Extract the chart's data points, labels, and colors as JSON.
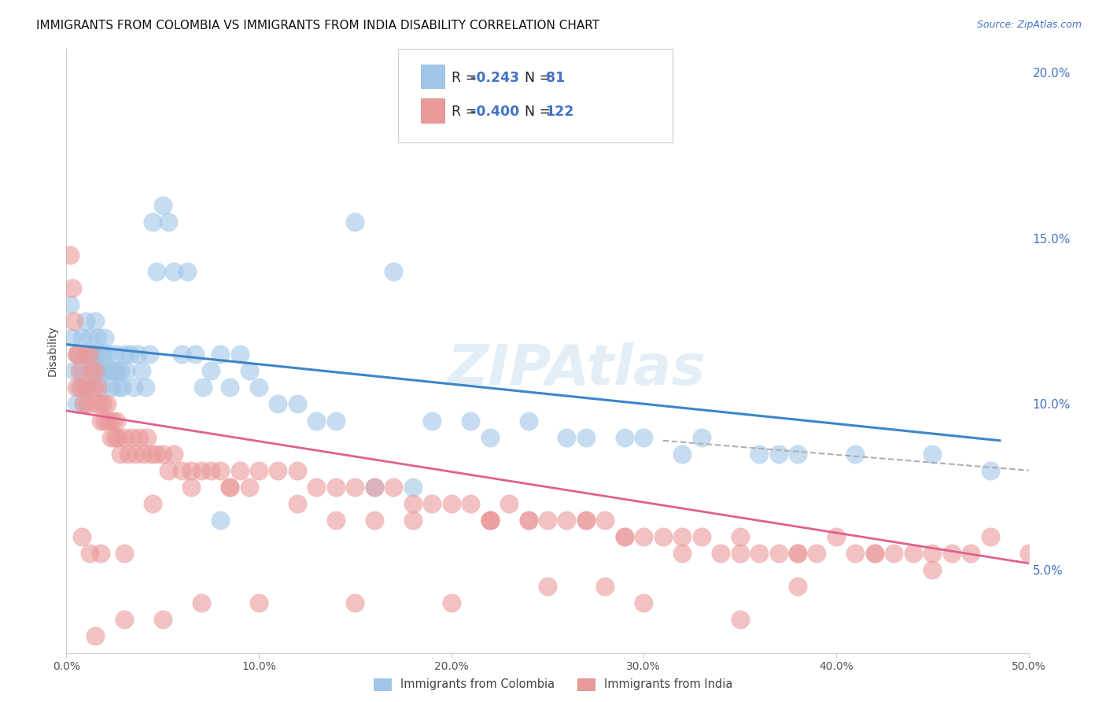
{
  "title": "IMMIGRANTS FROM COLOMBIA VS IMMIGRANTS FROM INDIA DISABILITY CORRELATION CHART",
  "source": "Source: ZipAtlas.com",
  "ylabel": "Disability",
  "xlim": [
    0.0,
    0.5
  ],
  "ylim": [
    0.025,
    0.207
  ],
  "xticks": [
    0.0,
    0.1,
    0.2,
    0.3,
    0.4,
    0.5
  ],
  "xticklabels": [
    "0.0%",
    "10.0%",
    "20.0%",
    "30.0%",
    "40.0%",
    "50.0%"
  ],
  "yticks_right": [
    0.05,
    0.1,
    0.15,
    0.2
  ],
  "yticklabels_right": [
    "5.0%",
    "10.0%",
    "15.0%",
    "20.0%"
  ],
  "grid_color": "#d8d8d8",
  "background_color": "#ffffff",
  "colombia_color": "#9fc5e8",
  "india_color": "#ea9999",
  "colombia_line_color": "#3d85c8",
  "india_line_color": "#e06090",
  "dashed_line_color": "#b0b0b0",
  "r_colombia": -0.243,
  "n_colombia": 81,
  "r_india": -0.4,
  "n_india": 122,
  "legend_label_colombia": "Immigrants from Colombia",
  "legend_label_india": "Immigrants from India",
  "watermark": "ZIPAtlas",
  "colombia_scatter_x": [
    0.002,
    0.003,
    0.004,
    0.005,
    0.006,
    0.007,
    0.008,
    0.008,
    0.009,
    0.01,
    0.01,
    0.011,
    0.012,
    0.013,
    0.014,
    0.015,
    0.015,
    0.016,
    0.017,
    0.018,
    0.018,
    0.019,
    0.02,
    0.02,
    0.021,
    0.022,
    0.023,
    0.024,
    0.025,
    0.026,
    0.027,
    0.028,
    0.029,
    0.03,
    0.031,
    0.033,
    0.035,
    0.037,
    0.039,
    0.041,
    0.043,
    0.045,
    0.047,
    0.05,
    0.053,
    0.056,
    0.06,
    0.063,
    0.067,
    0.071,
    0.075,
    0.08,
    0.085,
    0.09,
    0.095,
    0.1,
    0.11,
    0.12,
    0.13,
    0.14,
    0.15,
    0.17,
    0.19,
    0.21,
    0.24,
    0.27,
    0.3,
    0.33,
    0.37,
    0.41,
    0.45,
    0.48,
    0.22,
    0.26,
    0.32,
    0.38,
    0.29,
    0.36,
    0.16,
    0.18,
    0.08
  ],
  "colombia_scatter_y": [
    0.13,
    0.12,
    0.11,
    0.1,
    0.115,
    0.105,
    0.12,
    0.11,
    0.1,
    0.125,
    0.115,
    0.105,
    0.12,
    0.115,
    0.11,
    0.125,
    0.115,
    0.12,
    0.115,
    0.11,
    0.105,
    0.115,
    0.12,
    0.11,
    0.115,
    0.11,
    0.105,
    0.11,
    0.115,
    0.11,
    0.105,
    0.11,
    0.105,
    0.115,
    0.11,
    0.115,
    0.105,
    0.115,
    0.11,
    0.105,
    0.115,
    0.155,
    0.14,
    0.16,
    0.155,
    0.14,
    0.115,
    0.14,
    0.115,
    0.105,
    0.11,
    0.115,
    0.105,
    0.115,
    0.11,
    0.105,
    0.1,
    0.1,
    0.095,
    0.095,
    0.155,
    0.14,
    0.095,
    0.095,
    0.095,
    0.09,
    0.09,
    0.09,
    0.085,
    0.085,
    0.085,
    0.08,
    0.09,
    0.09,
    0.085,
    0.085,
    0.09,
    0.085,
    0.075,
    0.075,
    0.065
  ],
  "india_scatter_x": [
    0.002,
    0.003,
    0.004,
    0.005,
    0.005,
    0.006,
    0.007,
    0.008,
    0.009,
    0.01,
    0.01,
    0.011,
    0.012,
    0.013,
    0.014,
    0.015,
    0.015,
    0.016,
    0.017,
    0.018,
    0.019,
    0.02,
    0.021,
    0.022,
    0.023,
    0.024,
    0.025,
    0.026,
    0.027,
    0.028,
    0.03,
    0.032,
    0.034,
    0.036,
    0.038,
    0.04,
    0.042,
    0.044,
    0.047,
    0.05,
    0.053,
    0.056,
    0.06,
    0.065,
    0.07,
    0.075,
    0.08,
    0.085,
    0.09,
    0.095,
    0.1,
    0.11,
    0.12,
    0.13,
    0.14,
    0.15,
    0.16,
    0.17,
    0.18,
    0.19,
    0.2,
    0.21,
    0.22,
    0.23,
    0.24,
    0.25,
    0.26,
    0.27,
    0.28,
    0.29,
    0.3,
    0.31,
    0.32,
    0.33,
    0.34,
    0.35,
    0.36,
    0.38,
    0.4,
    0.42,
    0.44,
    0.46,
    0.48,
    0.5,
    0.37,
    0.39,
    0.41,
    0.43,
    0.45,
    0.47,
    0.27,
    0.29,
    0.22,
    0.24,
    0.32,
    0.35,
    0.14,
    0.16,
    0.085,
    0.065,
    0.045,
    0.03,
    0.018,
    0.012,
    0.008,
    0.42,
    0.38,
    0.28,
    0.2,
    0.15,
    0.1,
    0.07,
    0.05,
    0.03,
    0.015,
    0.25,
    0.3,
    0.35,
    0.18,
    0.22,
    0.12,
    0.38,
    0.45
  ],
  "india_scatter_y": [
    0.145,
    0.135,
    0.125,
    0.115,
    0.105,
    0.115,
    0.11,
    0.105,
    0.1,
    0.115,
    0.105,
    0.1,
    0.115,
    0.11,
    0.105,
    0.11,
    0.1,
    0.105,
    0.1,
    0.095,
    0.1,
    0.095,
    0.1,
    0.095,
    0.09,
    0.095,
    0.09,
    0.095,
    0.09,
    0.085,
    0.09,
    0.085,
    0.09,
    0.085,
    0.09,
    0.085,
    0.09,
    0.085,
    0.085,
    0.085,
    0.08,
    0.085,
    0.08,
    0.08,
    0.08,
    0.08,
    0.08,
    0.075,
    0.08,
    0.075,
    0.08,
    0.08,
    0.08,
    0.075,
    0.075,
    0.075,
    0.075,
    0.075,
    0.07,
    0.07,
    0.07,
    0.07,
    0.065,
    0.07,
    0.065,
    0.065,
    0.065,
    0.065,
    0.065,
    0.06,
    0.06,
    0.06,
    0.06,
    0.06,
    0.055,
    0.06,
    0.055,
    0.055,
    0.06,
    0.055,
    0.055,
    0.055,
    0.06,
    0.055,
    0.055,
    0.055,
    0.055,
    0.055,
    0.055,
    0.055,
    0.065,
    0.06,
    0.065,
    0.065,
    0.055,
    0.055,
    0.065,
    0.065,
    0.075,
    0.075,
    0.07,
    0.055,
    0.055,
    0.055,
    0.06,
    0.055,
    0.045,
    0.045,
    0.04,
    0.04,
    0.04,
    0.04,
    0.035,
    0.035,
    0.03,
    0.045,
    0.04,
    0.035,
    0.065,
    0.065,
    0.07,
    0.055,
    0.05
  ],
  "colombia_trendline_x": [
    0.0,
    0.485
  ],
  "colombia_trendline_y": [
    0.118,
    0.089
  ],
  "india_trendline_x": [
    0.0,
    0.5
  ],
  "india_trendline_y": [
    0.098,
    0.052
  ],
  "dashed_trendline_x": [
    0.31,
    0.5
  ],
  "dashed_trendline_y": [
    0.089,
    0.08
  ],
  "title_fontsize": 11,
  "source_fontsize": 9,
  "axis_label_fontsize": 10,
  "tick_fontsize": 10,
  "right_tick_color": "#4472c4",
  "text_color": "#222222",
  "legend_blue": "#4472c4",
  "legend_text_black": "#222222"
}
